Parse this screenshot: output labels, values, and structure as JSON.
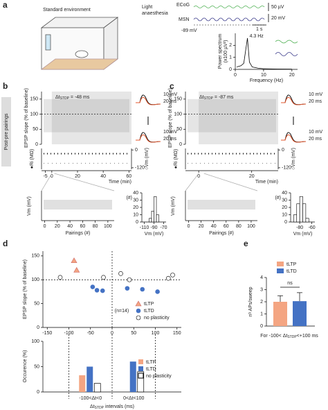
{
  "panel_a": {
    "label": "a",
    "env": "Standard environment",
    "anaesthesia": [
      "Light",
      "anaesthesia"
    ],
    "ecog": "ECoG",
    "msn": "MSN",
    "scale_uv": "50 µV",
    "scale_mv": "20 mV",
    "vm": "-89 mV",
    "scale_s": "1 s",
    "peak": "4.3 Hz",
    "ylabel": [
      "Power spectrum",
      "(x100 µV²)"
    ],
    "xlabel": "Frequency (Hz)",
    "spectrum": {
      "x": [
        0.5,
        2,
        3,
        4.3,
        5,
        6,
        8,
        10,
        15,
        20
      ],
      "values": [
        0.2,
        0.3,
        0.5,
        2.6,
        0.6,
        0.2,
        0.1,
        0.05,
        0.03,
        0.02
      ],
      "xlim": [
        0,
        22
      ],
      "ylim": [
        0,
        3
      ],
      "xticks": [
        0,
        10,
        20
      ],
      "yticks": [
        0,
        1,
        2
      ]
    }
  },
  "panel_b": {
    "label": "b",
    "side_label": "Post-pre pairings",
    "dt": {
      "prefix": "Δt",
      "sub": "STDP",
      "suffix": " = -48 ms"
    },
    "ylabel": "EPSP slope (% of baseline)",
    "ylim": [
      0,
      175
    ],
    "yticks": [
      0,
      50,
      100,
      150
    ],
    "hline": 100,
    "time_xlim": [
      -8,
      62
    ],
    "time_xticks": [
      -5,
      0,
      20,
      40,
      60
    ],
    "time_label": "Time (min)",
    "ri_label": "●Ri (MΩ)",
    "vm_label": "○Vm (mV)",
    "vm_ylim": [
      -130,
      10
    ],
    "vm_yticks": [
      0,
      -120
    ],
    "trace_scale": [
      "10 mV",
      "20 ms"
    ],
    "trace_scale2": [
      "10 mV",
      "20 ms"
    ],
    "pair_xlim": [
      -5,
      110
    ],
    "pair_xticks": [
      0,
      20,
      40,
      60,
      80,
      100
    ],
    "pair_label": "Pairings (#)",
    "pair_ylabel": "Vm (mV)",
    "hist": {
      "bins": [
        -100,
        -95,
        -90,
        -85,
        -80
      ],
      "counts": [
        5,
        15,
        35,
        10
      ],
      "xlim": [
        -115,
        -65
      ],
      "xticks": [
        -110,
        -90,
        -70
      ],
      "ylim": [
        0,
        40
      ],
      "yticks": [
        0,
        10,
        20,
        30,
        40
      ],
      "xlabel": "Vm (mV)",
      "ylabel": "(#)"
    }
  },
  "panel_c": {
    "label": "c",
    "dt": {
      "prefix": "Δt",
      "sub": "STDP",
      "suffix": " = -87 ms"
    },
    "ylabel": "EPSP slope (% of baseline)",
    "ylim": [
      0,
      175
    ],
    "yticks": [
      0,
      50,
      100,
      150
    ],
    "hline": 100,
    "time_xlim": [
      -5,
      30
    ],
    "time_xticks": [
      0,
      20
    ],
    "time_label": "Time (min)",
    "ri_label": "●Ri (MΩ)",
    "vm_label": "○Vm (mV)",
    "vm_ylim": [
      -130,
      10
    ],
    "vm_yticks": [
      0,
      -120
    ],
    "trace_scale": [
      "10 mV",
      "20 ms"
    ],
    "trace_scale2": [
      "10 mV",
      "20 ms"
    ],
    "pair_xlim": [
      -5,
      110
    ],
    "pair_xticks": [
      0,
      20,
      40,
      60,
      80,
      100
    ],
    "pair_label": "Pairings (#)",
    "pair_ylabel": "Vm (mV)",
    "hist": {
      "bins": [
        -90,
        -85,
        -80,
        -75,
        -70,
        -65
      ],
      "counts": [
        10,
        25,
        35,
        25,
        5
      ],
      "xlim": [
        -95,
        -55
      ],
      "xticks": [
        -80,
        -60
      ],
      "ylim": [
        0,
        40
      ],
      "yticks": [
        0,
        10,
        20,
        30,
        40
      ],
      "xlabel": "Vm (mV)",
      "ylabel": "(#)"
    }
  },
  "chart_data": [
    {
      "type": "scatter",
      "label": "d",
      "ylabel": "EPSP slope (% of baseline)",
      "annotation": "(n=14)",
      "xlim": [
        -160,
        160
      ],
      "ylim": [
        0,
        160
      ],
      "xticks": [
        -150,
        -100,
        -50,
        0,
        50,
        100,
        150
      ],
      "yticks": [
        0,
        50,
        100,
        150
      ],
      "hline": 100,
      "vline": 0,
      "series": [
        {
          "name": "tLTP",
          "color": "#f4a582",
          "marker": "triangle",
          "x": [
            -88,
            -82
          ],
          "values": [
            140,
            120
          ]
        },
        {
          "name": "tLTD",
          "color": "#4472c4",
          "marker": "filled",
          "x": [
            -45,
            -35,
            -22,
            35,
            70,
            105
          ],
          "values": [
            85,
            78,
            77,
            82,
            80,
            75
          ]
        },
        {
          "name": "no plasticity",
          "color": "#ffffff",
          "marker": "open",
          "x": [
            -120,
            -20,
            20,
            40,
            130,
            140
          ],
          "values": [
            105,
            105,
            113,
            100,
            103,
            110
          ]
        }
      ]
    },
    {
      "type": "bar",
      "ylabel": "Occurence (%)",
      "categories": [
        "-100<Δt<0",
        "0<Δt<100"
      ],
      "xlabel": {
        "prefix": "Δt",
        "sub": "STDP",
        "suffix": " intervals (ms)"
      },
      "ylim": [
        0,
        100
      ],
      "yticks": [
        0,
        50,
        100
      ],
      "series": [
        {
          "name": "tLTP",
          "color": "#f4a582",
          "values": [
            33,
            0
          ]
        },
        {
          "name": "tLTD",
          "color": "#4472c4",
          "values": [
            50,
            60
          ]
        },
        {
          "name": "no plasticity",
          "color": "#ffffff",
          "values": [
            17,
            40
          ]
        }
      ]
    },
    {
      "type": "errorbar",
      "label": "e",
      "ylabel": "nᵇ APs/sweep",
      "annotation": "ns",
      "xlabel": {
        "prefix": "For -100< Δt",
        "sub": "STDP",
        "suffix": "<+100 ms"
      },
      "ylim": [
        0,
        4
      ],
      "yticks": [
        0,
        1,
        2,
        3,
        4
      ],
      "series": [
        {
          "name": "tLTP",
          "color": "#f4a582",
          "values": [
            2.0
          ],
          "errors": [
            0.5
          ]
        },
        {
          "name": "tLTD",
          "color": "#4472c4",
          "values": [
            2.05
          ],
          "errors": [
            0.7
          ]
        }
      ]
    }
  ]
}
